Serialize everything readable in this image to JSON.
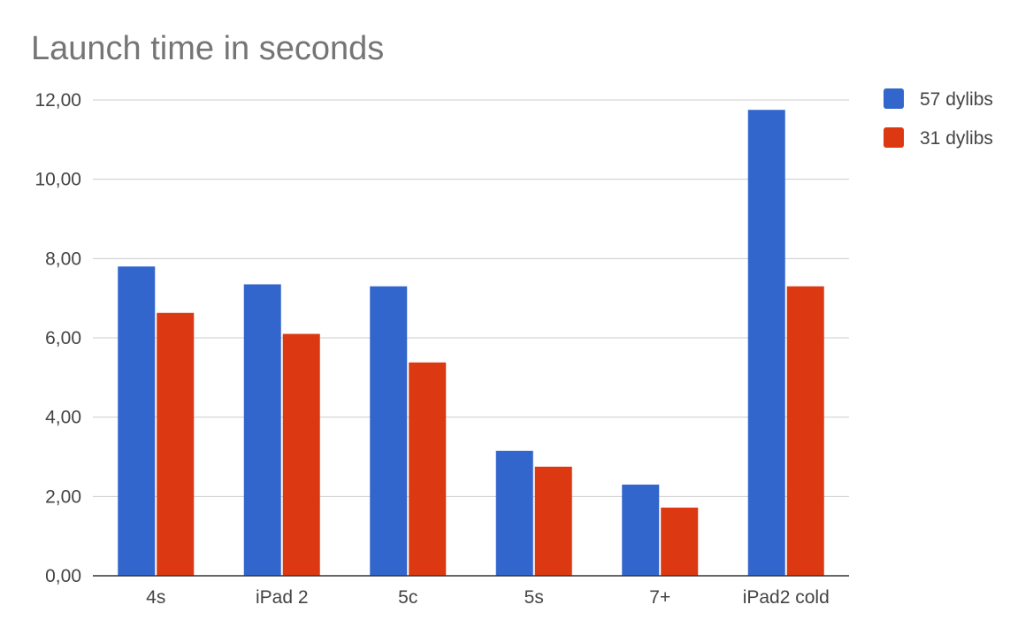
{
  "chart_data": {
    "type": "bar",
    "title": "Launch time in seconds",
    "xlabel": "",
    "ylabel": "",
    "categories": [
      "4s",
      "iPad 2",
      "5c",
      "5s",
      "7+",
      "iPad2 cold"
    ],
    "series": [
      {
        "name": "57 dylibs",
        "color": "#3366cc",
        "values": [
          7.8,
          7.35,
          7.3,
          3.15,
          2.3,
          11.75
        ]
      },
      {
        "name": "31 dylibs",
        "color": "#dc3912",
        "values": [
          6.63,
          6.1,
          5.38,
          2.75,
          1.72,
          7.3
        ]
      }
    ],
    "ylim": [
      0,
      12
    ],
    "yticks": [
      0,
      2,
      4,
      6,
      8,
      10,
      12
    ],
    "ytick_labels": [
      "0,00",
      "2,00",
      "4,00",
      "6,00",
      "8,00",
      "10,00",
      "12,00"
    ],
    "grid": true,
    "legend_position": "right-top"
  }
}
